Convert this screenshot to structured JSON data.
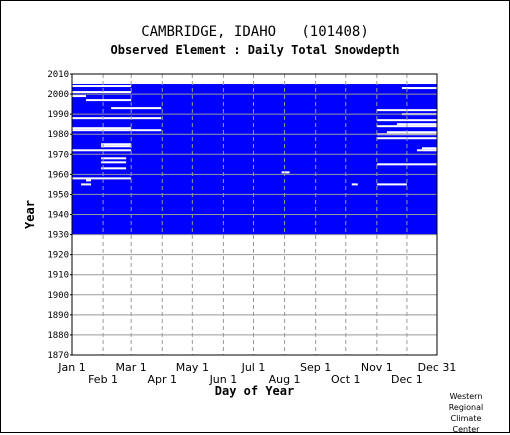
{
  "chart_data": {
    "type": "heatmap",
    "title": "CAMBRIDGE, IDAHO   (101408)",
    "subtitle": "Observed Element : Daily Total Snowdepth",
    "xlabel": "Day of Year",
    "ylabel": "Year",
    "x_ticks_top": [
      "Jan 1",
      "Mar 1",
      "May 1",
      "Jul 1",
      "Sep 1",
      "Nov 1",
      "Dec 31"
    ],
    "x_ticks_bottom": [
      "Feb 1",
      "Apr 1",
      "Jun 1",
      "Aug 1",
      "Oct 1",
      "Dec 1"
    ],
    "x_tick_days": [
      1,
      32,
      60,
      91,
      121,
      152,
      182,
      213,
      244,
      274,
      305,
      335,
      365
    ],
    "y_ticks": [
      2010,
      2000,
      1990,
      1980,
      1970,
      1960,
      1950,
      1940,
      1930,
      1920,
      1910,
      1900,
      1890,
      1880,
      1870
    ],
    "ylim": [
      1870,
      2010
    ],
    "xlim": [
      1,
      365
    ],
    "record_period": [
      1930,
      2005
    ],
    "fill_color": "#0000ff",
    "background_color": "#ffffff",
    "grid_color": "#999999",
    "missing_gaps": [
      {
        "year": 2004,
        "start_day": 1,
        "end_day": 60
      },
      {
        "year": 2003,
        "start_day": 330,
        "end_day": 365
      },
      {
        "year": 2001,
        "start_day": 1,
        "end_day": 60
      },
      {
        "year": 1999,
        "start_day": 1,
        "end_day": 15
      },
      {
        "year": 1997,
        "start_day": 15,
        "end_day": 60
      },
      {
        "year": 1993,
        "start_day": 40,
        "end_day": 90
      },
      {
        "year": 1992,
        "start_day": 305,
        "end_day": 365
      },
      {
        "year": 1990,
        "start_day": 330,
        "end_day": 365
      },
      {
        "year": 1988,
        "start_day": 1,
        "end_day": 90
      },
      {
        "year": 1987,
        "start_day": 305,
        "end_day": 365
      },
      {
        "year": 1985,
        "start_day": 325,
        "end_day": 365
      },
      {
        "year": 1984,
        "start_day": 305,
        "end_day": 365
      },
      {
        "year": 1983,
        "start_day": 1,
        "end_day": 60
      },
      {
        "year": 1982,
        "start_day": 1,
        "end_day": 90
      },
      {
        "year": 1981,
        "start_day": 315,
        "end_day": 365
      },
      {
        "year": 1980,
        "start_day": 305,
        "end_day": 365
      },
      {
        "year": 1978,
        "start_day": 305,
        "end_day": 365
      },
      {
        "year": 1975,
        "start_day": 30,
        "end_day": 60
      },
      {
        "year": 1974,
        "start_day": 30,
        "end_day": 60
      },
      {
        "year": 1973,
        "start_day": 350,
        "end_day": 365
      },
      {
        "year": 1972,
        "start_day": 1,
        "end_day": 60
      },
      {
        "year": 1972,
        "start_day": 345,
        "end_day": 365
      },
      {
        "year": 1968,
        "start_day": 30,
        "end_day": 55
      },
      {
        "year": 1966,
        "start_day": 30,
        "end_day": 55
      },
      {
        "year": 1965,
        "start_day": 305,
        "end_day": 365
      },
      {
        "year": 1963,
        "start_day": 30,
        "end_day": 55
      },
      {
        "year": 1961,
        "start_day": 210,
        "end_day": 218
      },
      {
        "year": 1958,
        "start_day": 1,
        "end_day": 60
      },
      {
        "year": 1957,
        "start_day": 15,
        "end_day": 20
      },
      {
        "year": 1955,
        "start_day": 10,
        "end_day": 20
      },
      {
        "year": 1955,
        "start_day": 280,
        "end_day": 286
      },
      {
        "year": 1955,
        "start_day": 305,
        "end_day": 335
      }
    ]
  },
  "credit": [
    "Western",
    "Regional",
    "Climate",
    "Center"
  ]
}
